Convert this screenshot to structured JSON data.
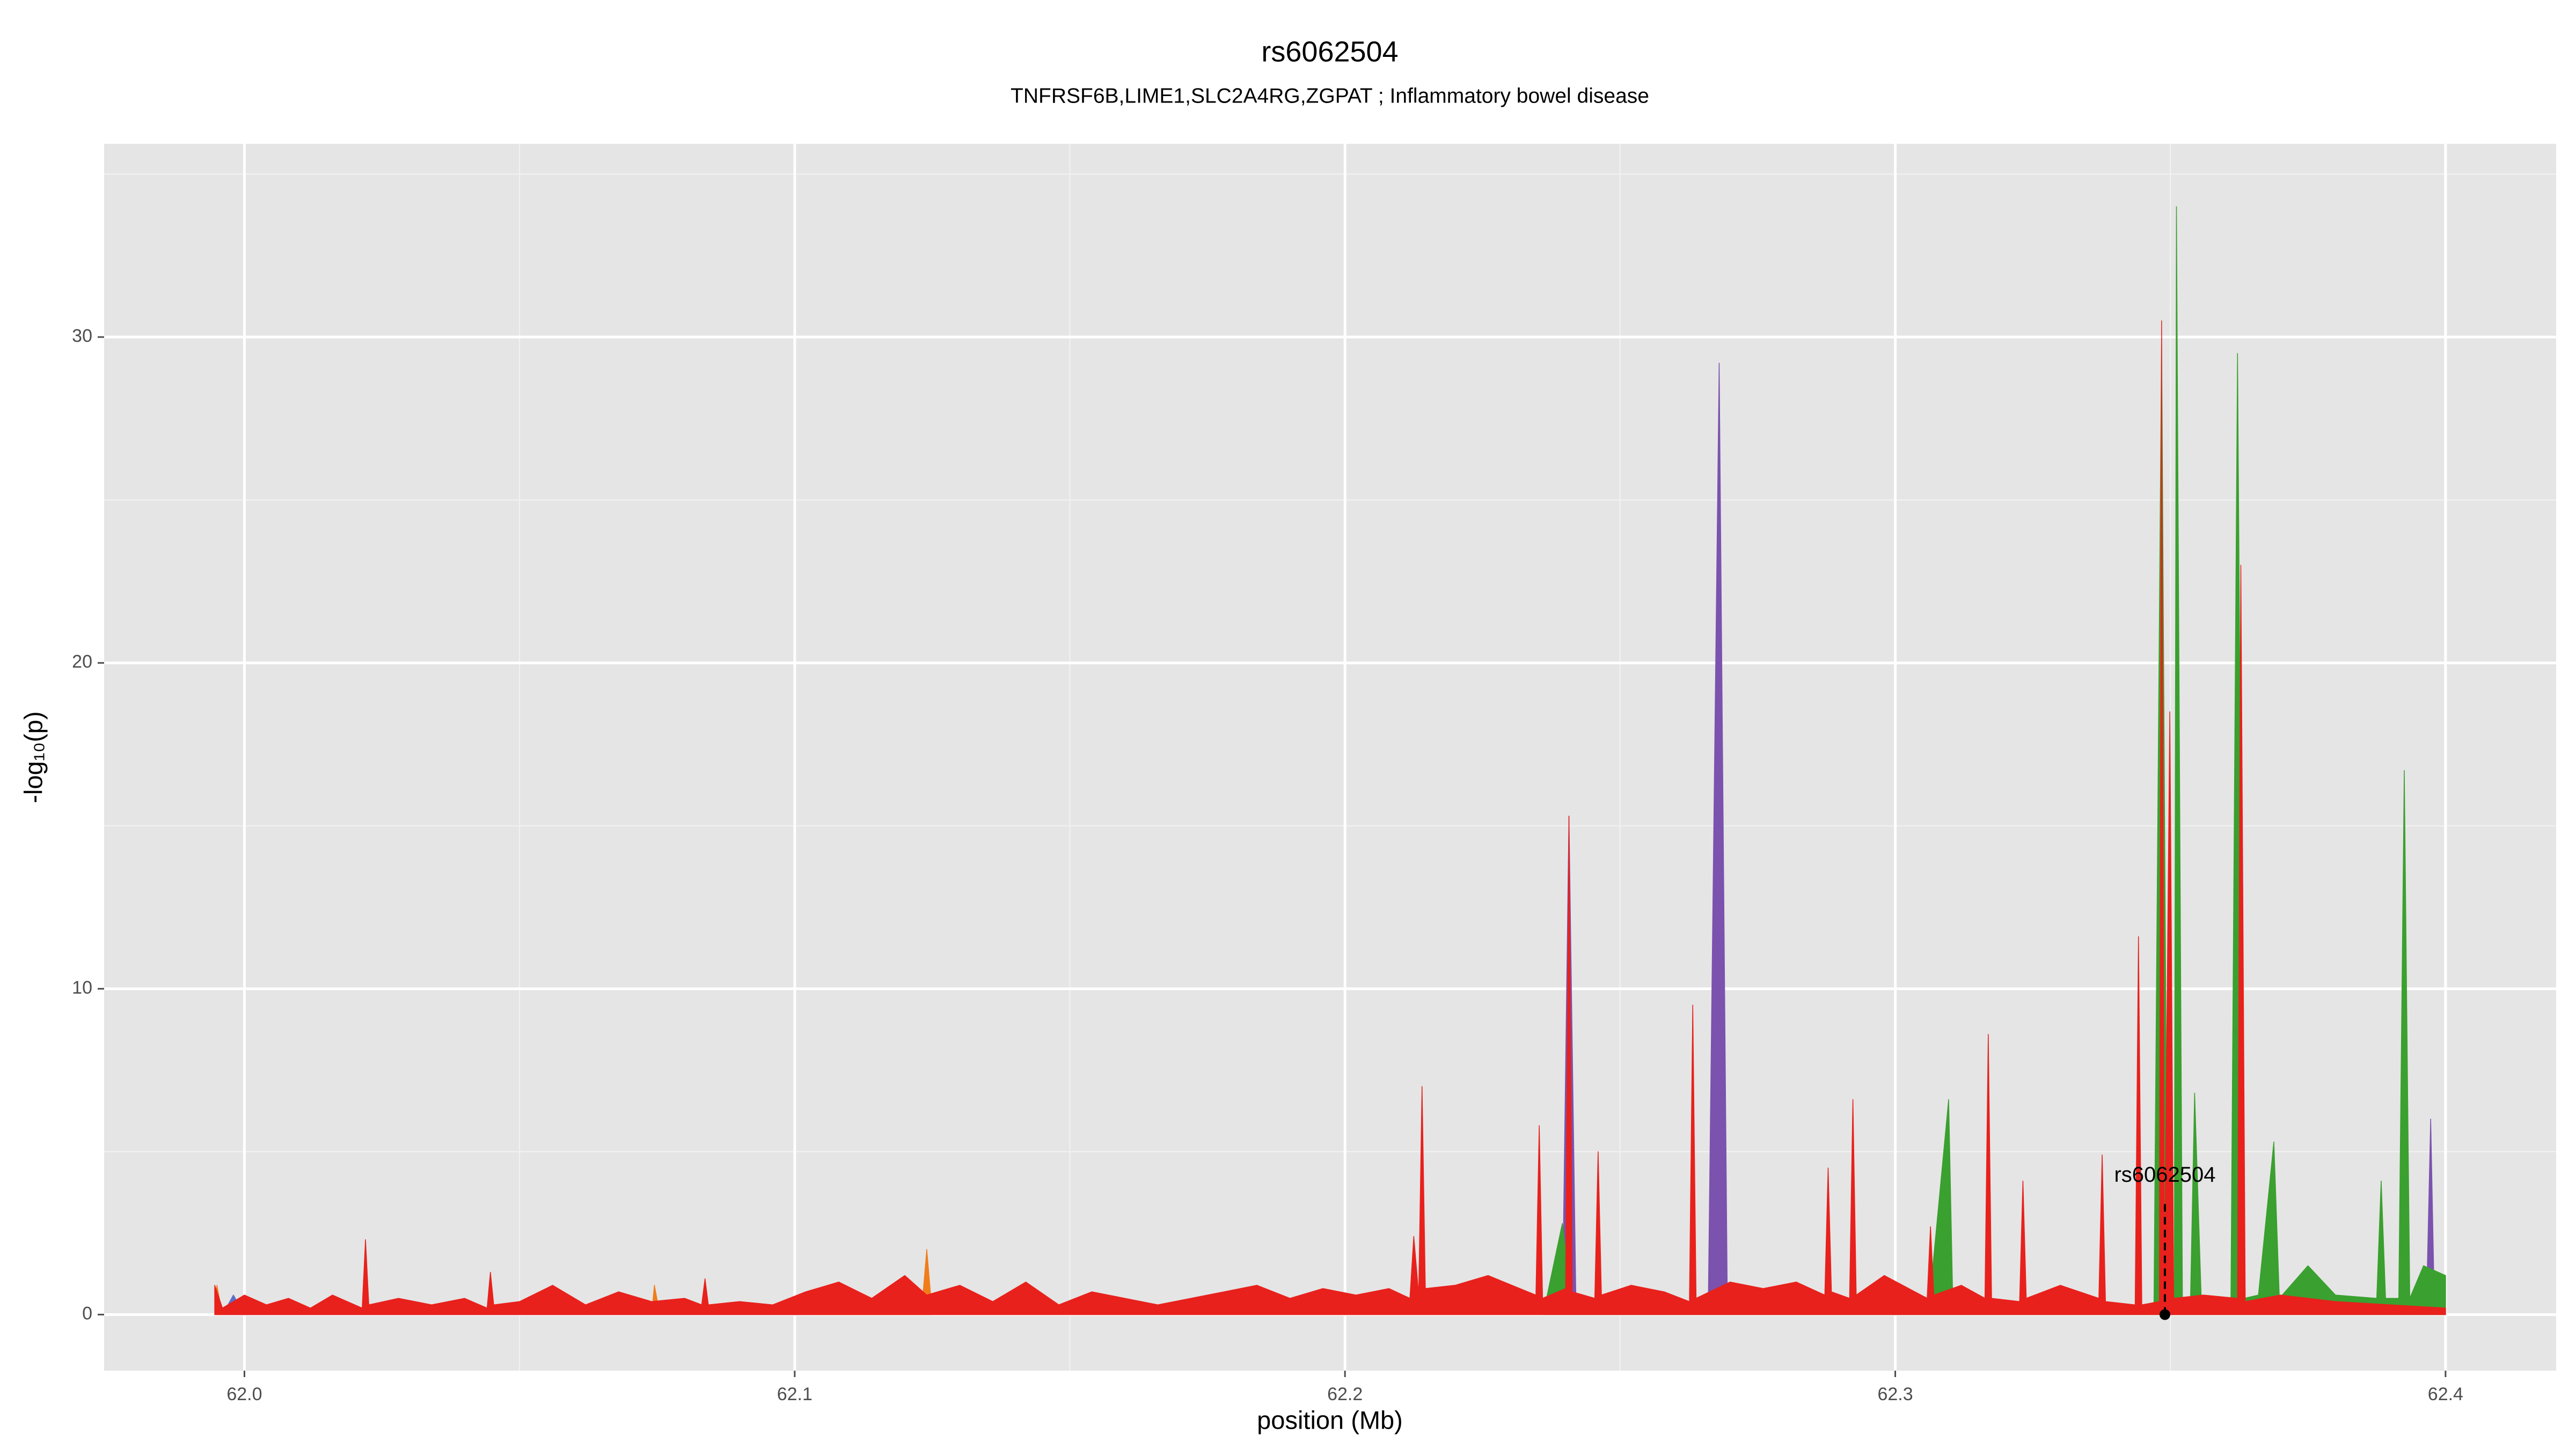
{
  "chart_data": {
    "type": "area",
    "title": "rs6062504",
    "subtitle": "TNFRSF6B,LIME1,SLC2A4RG,ZGPAT ; Inflammatory bowel disease",
    "x_label": "position (Mb)",
    "y_label": "-log₁₀(p)",
    "xlim": [
      61.9745,
      62.4201
    ],
    "ylim": [
      -1.72,
      35.93
    ],
    "xticks": [
      {
        "value": 62.0,
        "label": "62.0"
      },
      62.1,
      62.2,
      62.3,
      62.4
    ],
    "yticks": [
      0,
      10,
      20,
      30
    ],
    "xminor": [
      62.05,
      62.15,
      62.25,
      62.35
    ],
    "yminor": [
      5,
      15,
      25,
      35
    ],
    "grid": true,
    "annotation": {
      "label": "rs6062504",
      "x": 62.349
    },
    "series": [
      {
        "color": "#f07d1a",
        "x": [
          61.9946,
          61.995,
          61.996,
          62.074,
          62.0745,
          62.0755,
          62.123,
          62.124,
          62.125
        ],
        "values": [
          0,
          0.9,
          0,
          0,
          0.9,
          0,
          0,
          2.0,
          0
        ]
      },
      {
        "color": "#5a6fc9",
        "x": [
          61.996,
          61.998,
          62.0,
          62.1,
          62.101,
          62.102
        ],
        "values": [
          0,
          0.6,
          0,
          0,
          0.4,
          0
        ]
      },
      {
        "color": "#7b52ae",
        "x": [
          62.2395,
          62.2407,
          62.242,
          62.266,
          62.268,
          62.2695,
          62.3965,
          62.3973,
          62.398
        ],
        "values": [
          0,
          15.3,
          0,
          0,
          29.2,
          0,
          0,
          6.0,
          0
        ]
      },
      {
        "color": "#3aa02f",
        "x": [
          62.236,
          62.2395,
          62.2415,
          62.306,
          62.3097,
          62.3105,
          62.347,
          62.3484,
          62.3495,
          62.3507,
          62.3511,
          62.3522,
          62.3536,
          62.3544,
          62.3556,
          62.361,
          62.3622,
          62.3634,
          62.366,
          62.3688,
          62.3698,
          62.375,
          62.38,
          62.3875,
          62.3883,
          62.3891,
          62.3915,
          62.3925,
          62.3935,
          62.396,
          62.4
        ],
        "values": [
          0,
          2.8,
          0,
          0,
          6.6,
          0,
          0,
          30.0,
          0,
          0,
          34.0,
          0,
          0,
          6.8,
          0.5,
          0.5,
          29.5,
          0.5,
          0.6,
          5.3,
          0.5,
          1.5,
          0.6,
          0.5,
          4.1,
          0.5,
          0.5,
          16.7,
          0.5,
          1.5,
          1.2
        ]
      },
      {
        "color": "#e8211c",
        "x": [
          61.9946,
          61.996,
          62.0,
          62.004,
          62.008,
          62.012,
          62.016,
          62.0214,
          62.022,
          62.0226,
          62.028,
          62.034,
          62.04,
          62.0441,
          62.0447,
          62.0453,
          62.05,
          62.056,
          62.062,
          62.068,
          62.074,
          62.08,
          62.0831,
          62.0837,
          62.0843,
          62.09,
          62.096,
          62.102,
          62.108,
          62.114,
          62.12,
          62.124,
          62.13,
          62.136,
          62.142,
          62.148,
          62.154,
          62.16,
          62.166,
          62.172,
          62.178,
          62.184,
          62.19,
          62.196,
          62.202,
          62.208,
          62.2118,
          62.2125,
          62.2134,
          62.214,
          62.2146,
          62.22,
          62.226,
          62.2347,
          62.2353,
          62.2359,
          62.2401,
          62.2407,
          62.2413,
          62.2454,
          62.246,
          62.2466,
          62.252,
          62.258,
          62.2626,
          62.2632,
          62.2638,
          62.27,
          62.276,
          62.282,
          62.2872,
          62.2878,
          62.2884,
          62.2917,
          62.2923,
          62.2929,
          62.298,
          62.3058,
          62.3064,
          62.307,
          62.312,
          62.3163,
          62.3169,
          62.3175,
          62.3226,
          62.3232,
          62.3238,
          62.33,
          62.337,
          62.3376,
          62.3382,
          62.3436,
          62.3442,
          62.3448,
          62.348,
          62.3484,
          62.3489,
          62.3499,
          62.3506,
          62.356,
          62.3622,
          62.3628,
          62.3636,
          62.37,
          62.38,
          62.39,
          62.4
        ],
        "values": [
          0.9,
          0.2,
          0.6,
          0.3,
          0.5,
          0.2,
          0.6,
          0.2,
          2.3,
          0.3,
          0.5,
          0.3,
          0.5,
          0.2,
          1.3,
          0.3,
          0.4,
          0.9,
          0.3,
          0.7,
          0.4,
          0.5,
          0.3,
          1.1,
          0.3,
          0.4,
          0.3,
          0.7,
          1.0,
          0.5,
          1.2,
          0.6,
          0.9,
          0.4,
          1.0,
          0.3,
          0.7,
          0.5,
          0.3,
          0.5,
          0.7,
          0.9,
          0.5,
          0.8,
          0.6,
          0.8,
          0.5,
          2.4,
          0.6,
          7.0,
          0.8,
          0.9,
          1.2,
          0.6,
          5.8,
          0.5,
          0.8,
          15.3,
          0.7,
          0.5,
          5.0,
          0.6,
          0.9,
          0.7,
          0.4,
          9.5,
          0.5,
          1.0,
          0.8,
          1.0,
          0.6,
          4.5,
          0.7,
          0.5,
          6.6,
          0.6,
          1.2,
          0.5,
          2.7,
          0.6,
          0.9,
          0.5,
          8.6,
          0.5,
          0.4,
          4.1,
          0.5,
          0.9,
          0.5,
          4.9,
          0.4,
          0.3,
          11.6,
          0.3,
          0.4,
          30.5,
          0.6,
          18.5,
          0.5,
          0.6,
          0.5,
          23.0,
          0.4,
          0.6,
          0.4,
          0.3,
          0.2
        ]
      }
    ]
  }
}
